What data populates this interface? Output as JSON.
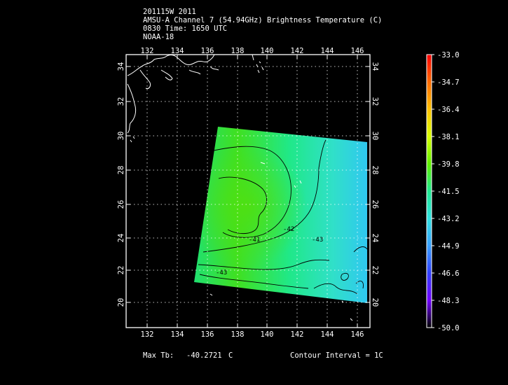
{
  "header": {
    "line1": "201115W 2011",
    "line2": "AMSU-A Channel 7 (54.94GHz) Brightness Temperature (C)",
    "line3": "0830 Time: 1650 UTC",
    "line4": "NOAA-18"
  },
  "map": {
    "lon_ticks": [
      "132",
      "134",
      "136",
      "138",
      "140",
      "142",
      "144",
      "146"
    ],
    "lat_ticks": [
      "34",
      "32",
      "30",
      "28",
      "26",
      "24",
      "22",
      "20"
    ],
    "contour_labels": [
      "-42",
      "-41",
      "-43",
      "-43"
    ]
  },
  "colorbar": {
    "labels": [
      "-33.0",
      "-34.7",
      "-36.4",
      "-38.1",
      "-39.8",
      "-41.5",
      "-43.2",
      "-44.9",
      "-46.6",
      "-48.3",
      "-50.0"
    ],
    "colors": [
      "#ff0000",
      "#ff6a00",
      "#ffc000",
      "#d8ff00",
      "#60f000",
      "#20e890",
      "#30e0e0",
      "#3aa0ff",
      "#3040ff",
      "#7000ff",
      "#000000"
    ]
  },
  "footer": {
    "max_label": "Max Tb:",
    "max_value": "-40.2721",
    "max_unit": "C",
    "contour_interval": "Contour Interval = 1C"
  }
}
